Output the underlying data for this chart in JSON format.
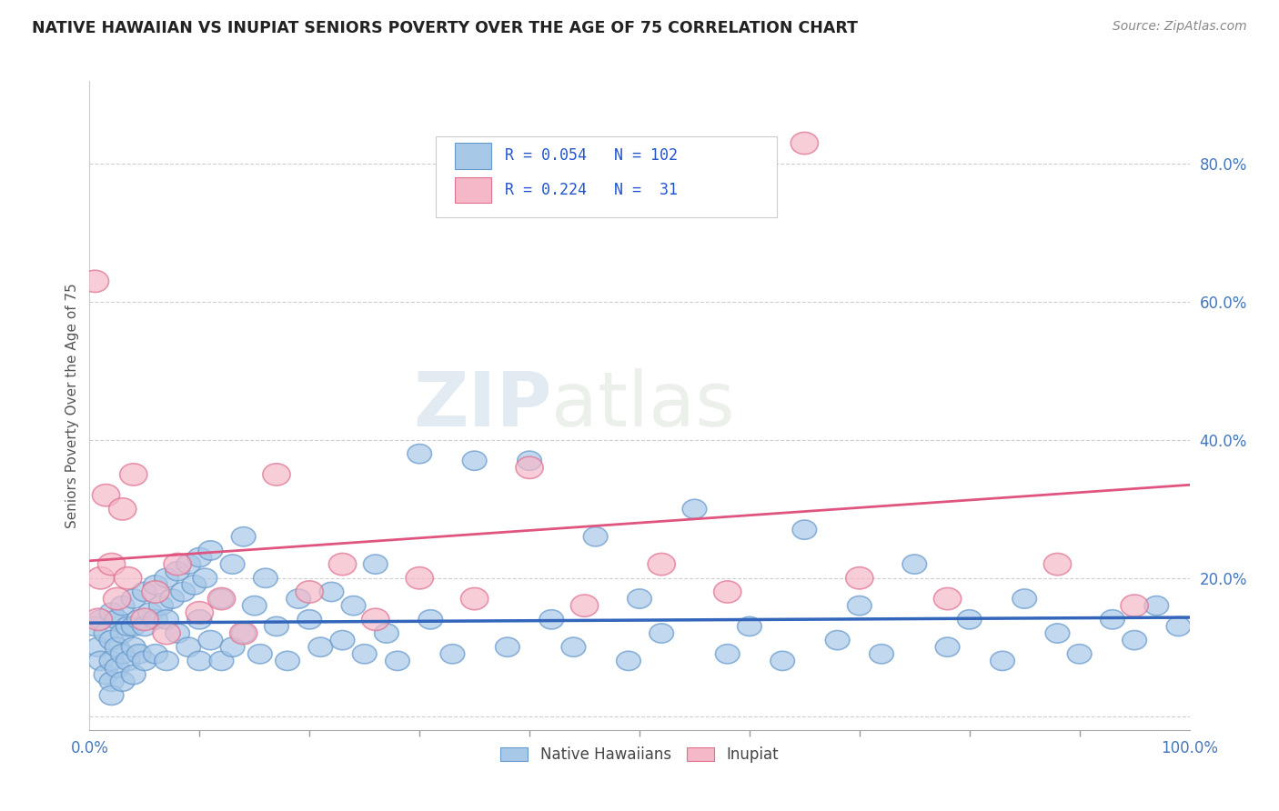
{
  "title": "NATIVE HAWAIIAN VS INUPIAT SENIORS POVERTY OVER THE AGE OF 75 CORRELATION CHART",
  "source": "Source: ZipAtlas.com",
  "ylabel": "Seniors Poverty Over the Age of 75",
  "xlim": [
    0,
    1
  ],
  "ylim": [
    -0.02,
    0.92
  ],
  "yticks": [
    0.0,
    0.2,
    0.4,
    0.6,
    0.8
  ],
  "ytick_labels": [
    "",
    "20.0%",
    "40.0%",
    "60.0%",
    "80.0%"
  ],
  "xticks": [
    0,
    1
  ],
  "xtick_labels": [
    "0.0%",
    "100.0%"
  ],
  "background_color": "#ffffff",
  "grid_color": "#cccccc",
  "title_color": "#222222",
  "title_fontsize": 12.5,
  "watermark_zip": "ZIP",
  "watermark_atlas": "atlas",
  "legend_line1": "R = 0.054   N = 102",
  "legend_line2": "R = 0.224   N =  31",
  "group1_color": "#a8c8e8",
  "group1_edge": "#6699cc",
  "group2_color": "#f5b8c8",
  "group2_edge": "#e07090",
  "trendline1_color": "#3366bb",
  "trendline2_color": "#e05580",
  "label1": "Native Hawaiians",
  "label2": "Inupiat",
  "trendline1_x0": 0.0,
  "trendline1_y0": 0.135,
  "trendline1_x1": 1.0,
  "trendline1_y1": 0.143,
  "trendline2_x0": 0.0,
  "trendline2_y0": 0.225,
  "trendline2_x1": 1.0,
  "trendline2_y1": 0.335,
  "nh_x": [
    0.005,
    0.008,
    0.01,
    0.01,
    0.015,
    0.015,
    0.02,
    0.02,
    0.02,
    0.02,
    0.02,
    0.025,
    0.025,
    0.025,
    0.03,
    0.03,
    0.03,
    0.03,
    0.035,
    0.035,
    0.04,
    0.04,
    0.04,
    0.04,
    0.045,
    0.045,
    0.05,
    0.05,
    0.05,
    0.055,
    0.06,
    0.06,
    0.06,
    0.065,
    0.07,
    0.07,
    0.07,
    0.075,
    0.08,
    0.08,
    0.085,
    0.09,
    0.09,
    0.095,
    0.1,
    0.1,
    0.1,
    0.105,
    0.11,
    0.11,
    0.12,
    0.12,
    0.13,
    0.13,
    0.14,
    0.14,
    0.15,
    0.155,
    0.16,
    0.17,
    0.18,
    0.19,
    0.2,
    0.21,
    0.22,
    0.23,
    0.24,
    0.25,
    0.26,
    0.27,
    0.28,
    0.3,
    0.31,
    0.33,
    0.35,
    0.38,
    0.4,
    0.42,
    0.44,
    0.46,
    0.49,
    0.5,
    0.52,
    0.55,
    0.58,
    0.6,
    0.63,
    0.65,
    0.68,
    0.7,
    0.72,
    0.75,
    0.78,
    0.8,
    0.83,
    0.85,
    0.88,
    0.9,
    0.93,
    0.95,
    0.97,
    0.99
  ],
  "nh_y": [
    0.13,
    0.1,
    0.14,
    0.08,
    0.12,
    0.06,
    0.15,
    0.11,
    0.08,
    0.05,
    0.03,
    0.14,
    0.1,
    0.07,
    0.16,
    0.12,
    0.09,
    0.05,
    0.13,
    0.08,
    0.17,
    0.13,
    0.1,
    0.06,
    0.14,
    0.09,
    0.18,
    0.13,
    0.08,
    0.15,
    0.19,
    0.14,
    0.09,
    0.16,
    0.2,
    0.14,
    0.08,
    0.17,
    0.21,
    0.12,
    0.18,
    0.22,
    0.1,
    0.19,
    0.23,
    0.14,
    0.08,
    0.2,
    0.24,
    0.11,
    0.17,
    0.08,
    0.22,
    0.1,
    0.26,
    0.12,
    0.16,
    0.09,
    0.2,
    0.13,
    0.08,
    0.17,
    0.14,
    0.1,
    0.18,
    0.11,
    0.16,
    0.09,
    0.22,
    0.12,
    0.08,
    0.38,
    0.14,
    0.09,
    0.37,
    0.1,
    0.37,
    0.14,
    0.1,
    0.26,
    0.08,
    0.17,
    0.12,
    0.3,
    0.09,
    0.13,
    0.08,
    0.27,
    0.11,
    0.16,
    0.09,
    0.22,
    0.1,
    0.14,
    0.08,
    0.17,
    0.12,
    0.09,
    0.14,
    0.11,
    0.16,
    0.13
  ],
  "inupiat_x": [
    0.005,
    0.008,
    0.01,
    0.015,
    0.02,
    0.025,
    0.03,
    0.035,
    0.04,
    0.05,
    0.06,
    0.07,
    0.08,
    0.1,
    0.12,
    0.14,
    0.17,
    0.2,
    0.23,
    0.26,
    0.3,
    0.35,
    0.4,
    0.45,
    0.52,
    0.58,
    0.65,
    0.7,
    0.78,
    0.88,
    0.95
  ],
  "inupiat_y": [
    0.63,
    0.14,
    0.2,
    0.32,
    0.22,
    0.17,
    0.3,
    0.2,
    0.35,
    0.14,
    0.18,
    0.12,
    0.22,
    0.15,
    0.17,
    0.12,
    0.35,
    0.18,
    0.22,
    0.14,
    0.2,
    0.17,
    0.36,
    0.16,
    0.22,
    0.18,
    0.83,
    0.2,
    0.17,
    0.22,
    0.16
  ]
}
